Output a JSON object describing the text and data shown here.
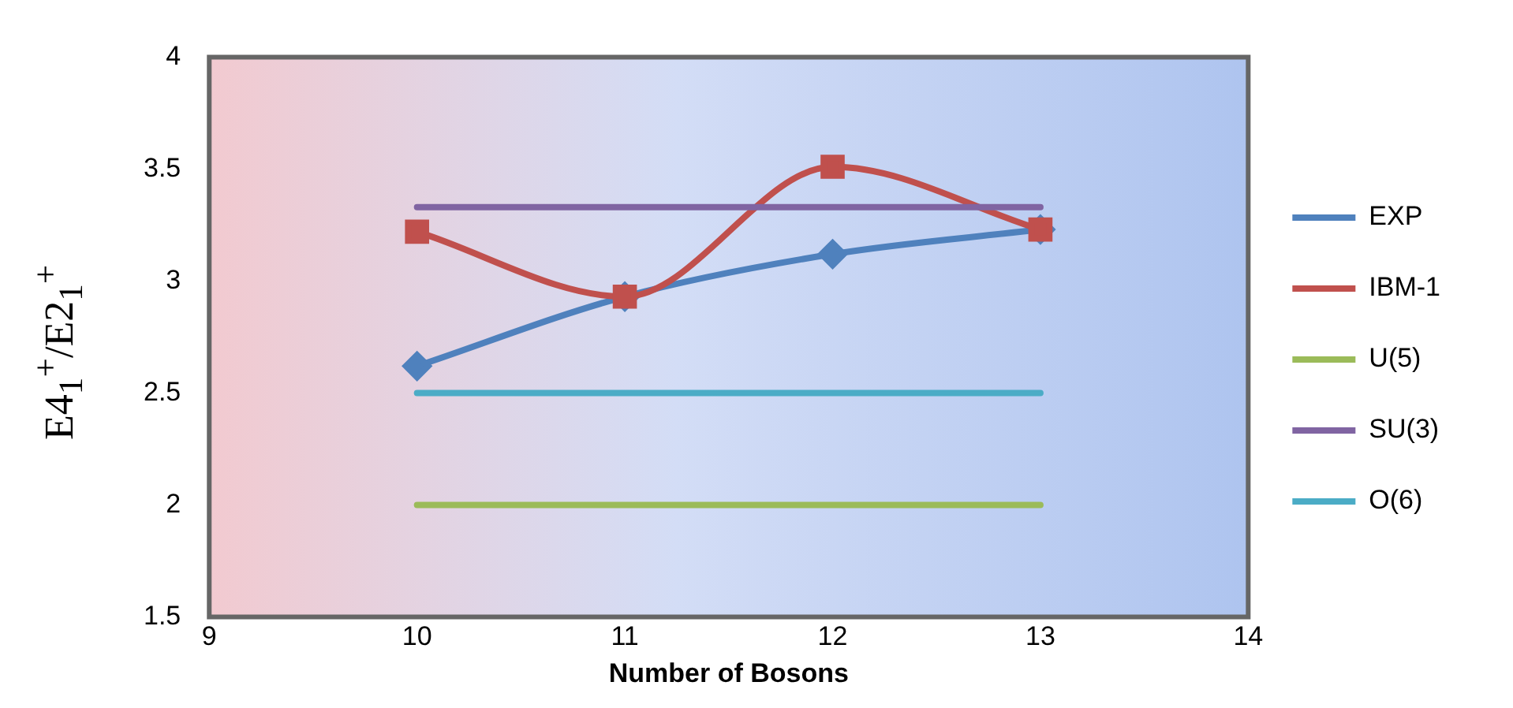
{
  "chart_data": {
    "type": "line",
    "xlabel": "Number of Bosons",
    "ylabel": "E4$_{1}$$^{+}$/E2$_{1}$$^{+}$",
    "x": [
      10,
      11,
      12,
      13
    ],
    "series": [
      {
        "name": "EXP",
        "color": "#4f81bd",
        "values": [
          2.62,
          2.93,
          3.12,
          3.23
        ],
        "marker": "diamond"
      },
      {
        "name": "IBM-1",
        "color": "#c0504d",
        "values": [
          3.22,
          2.93,
          3.51,
          3.23
        ],
        "marker": "square"
      },
      {
        "name": "U(5)",
        "color": "#9bbb59",
        "values": [
          2,
          2,
          2,
          2
        ],
        "marker": "none"
      },
      {
        "name": "SU(3)",
        "color": "#8064a2",
        "values": [
          3.33,
          3.33,
          3.33,
          3.33
        ],
        "marker": "none"
      },
      {
        "name": "O(6)",
        "color": "#4bacc6",
        "values": [
          2.5,
          2.5,
          2.5,
          2.5
        ],
        "marker": "none"
      }
    ],
    "xlim": [
      9,
      14
    ],
    "xticks": [
      9,
      10,
      11,
      12,
      13,
      14
    ],
    "ylim": [
      1.5,
      4
    ],
    "yticks": [
      1.5,
      2,
      2.5,
      3,
      3.5,
      4
    ],
    "grid": false,
    "legend": "right"
  }
}
